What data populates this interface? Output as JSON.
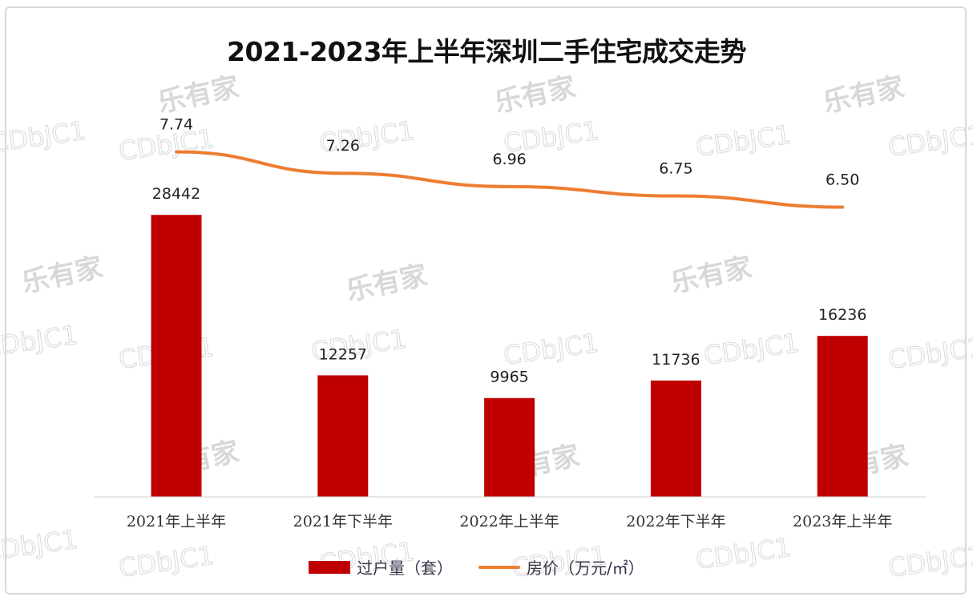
{
  "chart_data": {
    "type": "bar+line",
    "title": "2021-2023年上半年深圳二手住宅成交走势",
    "categories": [
      "2021年上半年",
      "2021年下半年",
      "2022年上半年",
      "2022年下半年",
      "2023年上半年"
    ],
    "series": [
      {
        "name": "过户量（套）",
        "type": "bar",
        "axis": "primary",
        "color": "#c00000",
        "values": [
          28442,
          12257,
          9965,
          11736,
          16236
        ],
        "labels": [
          "28442",
          "12257",
          "9965",
          "11736",
          "16236"
        ]
      },
      {
        "name": "房价（万元/㎡）",
        "type": "line",
        "axis": "secondary",
        "color": "#ed7d31",
        "values": [
          7.74,
          7.26,
          6.96,
          6.75,
          6.5
        ],
        "labels": [
          "7.74",
          "7.26",
          "6.96",
          "6.75",
          "6.50"
        ]
      }
    ],
    "ylim": [
      0,
      38000
    ],
    "y2lim": [
      0,
      8.45
    ],
    "grid": false,
    "axes_visible": false,
    "legend": "bottom"
  },
  "watermark": {
    "logo": "乐有家",
    "code": "CDbJC1",
    "color": "#d8d8d8"
  }
}
